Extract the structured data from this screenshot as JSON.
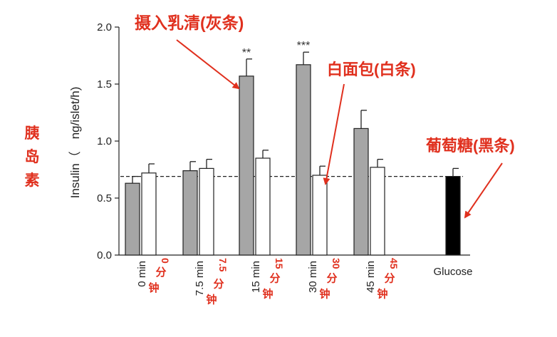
{
  "chart_data": {
    "type": "bar",
    "ylabel": "Insulin（　ng/islet/h)",
    "ylim": [
      0,
      2.0
    ],
    "yticks": [
      "0.0",
      "0.5",
      "1.0",
      "1.5",
      "2.0"
    ],
    "reference_line": 0.69,
    "groups": [
      {
        "label": "0 min",
        "cn": "0分钟",
        "grey": 0.63,
        "grey_err": 0.06,
        "white": 0.72,
        "white_err": 0.08,
        "grey_sig": "",
        "white_sig": ""
      },
      {
        "label": "7.5 min",
        "cn": "7.5分钟",
        "grey": 0.74,
        "grey_err": 0.08,
        "white": 0.76,
        "white_err": 0.08,
        "grey_sig": "",
        "white_sig": ""
      },
      {
        "label": "15 min",
        "cn": "15分钟",
        "grey": 1.57,
        "grey_err": 0.15,
        "white": 0.85,
        "white_err": 0.07,
        "grey_sig": "**",
        "white_sig": ""
      },
      {
        "label": "30 min",
        "cn": "30分钟",
        "grey": 1.67,
        "grey_err": 0.11,
        "white": 0.7,
        "white_err": 0.08,
        "grey_sig": "***",
        "white_sig": ""
      },
      {
        "label": "45 min",
        "cn": "45分钟",
        "grey": 1.11,
        "grey_err": 0.16,
        "white": 0.77,
        "white_err": 0.07,
        "grey_sig": "",
        "white_sig": ""
      }
    ],
    "glucose": {
      "label": "Glucose",
      "value": 0.69,
      "err": 0.07
    },
    "colors": {
      "grey": "#a6a6a6",
      "white": "#ffffff",
      "black": "#000000",
      "annotation": "#e0301e"
    }
  },
  "annotations": {
    "ylabel_cn": [
      "胰",
      "岛",
      "素"
    ],
    "whey": "摄入乳清(灰条)",
    "white_bread": "白面包(白条)",
    "glucose": "葡萄糖(黑条)"
  }
}
